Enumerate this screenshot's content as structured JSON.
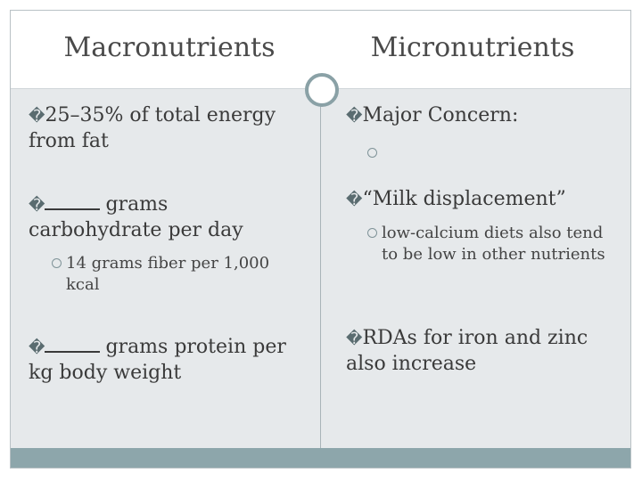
{
  "titles": {
    "left": "Macronutrients",
    "right": "Micronutrients"
  },
  "left_column": {
    "item1": {
      "bullet": "�",
      "text": "25–35% of total energy from fat"
    },
    "item2": {
      "bullet": "�",
      "text": "grams carbohydrate per day"
    },
    "item2_sub": "14 grams fiber per 1,000 kcal",
    "item3": {
      "bullet": "�",
      "text": "grams protein per kg body weight"
    }
  },
  "right_column": {
    "item1": {
      "bullet": "�",
      "text": "Major Concern:"
    },
    "item2": {
      "bullet": "�",
      "text": "“Milk displacement”"
    },
    "item2_sub": "low-calcium diets also tend to be low in other nutrients",
    "item3": {
      "bullet": "�",
      "text": "RDAs for iron and zinc also increase"
    }
  }
}
